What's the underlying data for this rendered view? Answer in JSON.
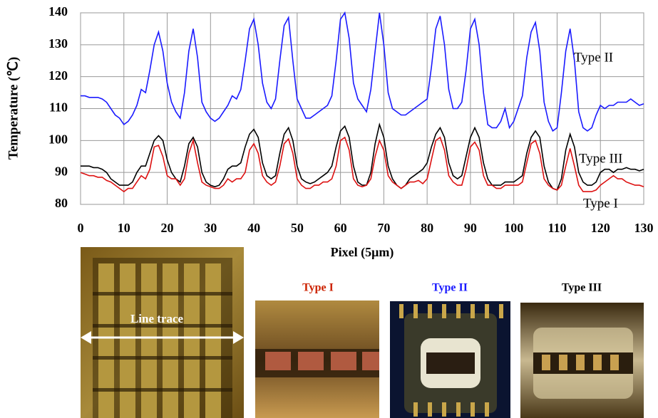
{
  "chart_data": {
    "type": "line",
    "y_label": "Temperature (℃)",
    "x_label": "Pixel (5μm)",
    "x": [
      0,
      1,
      2,
      3,
      4,
      5,
      6,
      7,
      8,
      9,
      10,
      11,
      12,
      13,
      14,
      15,
      16,
      17,
      18,
      19,
      20,
      21,
      22,
      23,
      24,
      25,
      26,
      27,
      28,
      29,
      30,
      31,
      32,
      33,
      34,
      35,
      36,
      37,
      38,
      39,
      40,
      41,
      42,
      43,
      44,
      45,
      46,
      47,
      48,
      49,
      50,
      51,
      52,
      53,
      54,
      55,
      56,
      57,
      58,
      59,
      60,
      61,
      62,
      63,
      64,
      65,
      66,
      67,
      68,
      69,
      70,
      71,
      72,
      73,
      74,
      75,
      76,
      77,
      78,
      79,
      80,
      81,
      82,
      83,
      84,
      85,
      86,
      87,
      88,
      89,
      90,
      91,
      92,
      93,
      94,
      95,
      96,
      97,
      98,
      99,
      100,
      101,
      102,
      103,
      104,
      105,
      106,
      107,
      108,
      109,
      110,
      111,
      112,
      113,
      114,
      115,
      116,
      117,
      118,
      119,
      120,
      121,
      122,
      123,
      124,
      125,
      126,
      127,
      128,
      129,
      130
    ],
    "series": [
      {
        "name": "Type II",
        "color": "#1a1aff",
        "values": [
          114,
          114,
          113.5,
          113.5,
          113.5,
          113,
          112,
          110,
          108,
          107,
          105,
          106,
          108,
          111,
          116,
          115,
          122,
          130,
          134,
          128,
          118,
          112,
          109,
          107,
          115,
          128,
          135,
          126,
          112,
          109,
          107,
          106,
          107,
          109,
          111,
          114,
          113,
          116,
          125,
          135,
          138,
          130,
          118,
          112,
          110,
          113,
          125,
          136,
          138.5,
          125,
          113,
          110,
          107,
          107,
          108,
          109,
          110,
          111,
          114,
          125,
          138,
          140,
          132,
          118,
          113,
          111,
          109,
          116,
          128,
          140,
          130,
          115,
          110,
          109,
          108,
          108,
          109,
          110,
          111,
          112,
          113,
          123,
          135,
          139,
          130,
          116,
          110,
          110,
          112,
          122,
          135,
          138,
          130,
          115,
          105,
          104,
          104,
          106,
          110,
          104,
          106,
          110,
          114,
          126,
          134,
          137,
          128,
          112,
          106,
          103,
          104,
          115,
          128,
          135,
          125,
          109,
          104,
          103,
          104,
          108,
          111,
          110,
          111,
          111,
          112,
          112,
          112,
          113,
          112,
          111,
          111.5
        ]
      },
      {
        "name": "Type III",
        "color": "#000000",
        "values": [
          92,
          92,
          92,
          91.5,
          91.5,
          91,
          90,
          88,
          87,
          86,
          86,
          86,
          87,
          90,
          92,
          92,
          96,
          100,
          101.5,
          100,
          94,
          90,
          88,
          87,
          92,
          99,
          101,
          98,
          90,
          87,
          86,
          85.5,
          86,
          88,
          91,
          92,
          92,
          93,
          98,
          102,
          103.5,
          101,
          93,
          89,
          88,
          89,
          96,
          102,
          104,
          100,
          92,
          88,
          87,
          86.5,
          87,
          88,
          89,
          90,
          92,
          98,
          103,
          104.5,
          101,
          92,
          87,
          86,
          86,
          90,
          99,
          105,
          101,
          92,
          88,
          86,
          85,
          86,
          88,
          89,
          90,
          91,
          93,
          98,
          102,
          104,
          101,
          93,
          89,
          88,
          89,
          95,
          101,
          104,
          101,
          93,
          88,
          86,
          86,
          86,
          87,
          87,
          87,
          88,
          89,
          96,
          101,
          103,
          101,
          92,
          87,
          85,
          84.5,
          88,
          97,
          102,
          98,
          90,
          87,
          86,
          86,
          87,
          90,
          91,
          91,
          90,
          91,
          91,
          91.5,
          91,
          91,
          90.5,
          91
        ]
      },
      {
        "name": "Type I",
        "color": "#dd1111",
        "values": [
          90,
          89.5,
          89,
          89,
          88.5,
          88.5,
          87.5,
          87,
          86,
          85,
          84,
          85,
          85,
          87,
          89,
          88,
          91,
          98,
          98.5,
          95,
          89,
          88,
          88,
          86,
          88,
          96,
          100,
          93,
          87,
          86,
          85.5,
          85,
          85,
          86,
          88,
          87,
          88,
          88,
          90,
          97,
          99,
          96,
          89,
          87,
          86,
          87,
          92,
          99,
          100.5,
          96,
          88,
          86,
          85,
          85,
          86,
          86,
          87,
          87,
          88,
          92,
          100,
          101,
          97,
          88,
          86,
          85.5,
          86,
          88,
          95,
          100,
          97,
          89,
          87,
          86,
          85,
          86,
          87,
          87,
          87.5,
          86.5,
          88,
          94,
          100,
          101,
          97,
          89,
          87,
          86,
          86,
          91,
          98,
          99.5,
          97,
          89,
          86,
          86,
          85,
          85,
          86,
          86,
          86,
          86,
          87,
          93,
          99,
          100,
          96,
          88,
          86,
          85,
          84.5,
          86,
          92,
          97.5,
          92,
          86,
          84,
          84,
          84,
          84.5,
          86,
          87,
          88,
          89,
          88,
          88,
          87,
          86.5,
          86,
          86,
          85.5
        ]
      }
    ],
    "xlim": [
      0,
      130
    ],
    "xticks": [
      0,
      10,
      20,
      30,
      40,
      50,
      60,
      70,
      80,
      90,
      100,
      110,
      120,
      130
    ],
    "ylim": [
      80,
      140
    ],
    "yticks": [
      80,
      90,
      100,
      110,
      120,
      130,
      140
    ],
    "grid": true
  },
  "photos": {
    "line_trace_label": "Line trace",
    "captions": [
      "Type I",
      "Type II",
      "Type III"
    ]
  }
}
